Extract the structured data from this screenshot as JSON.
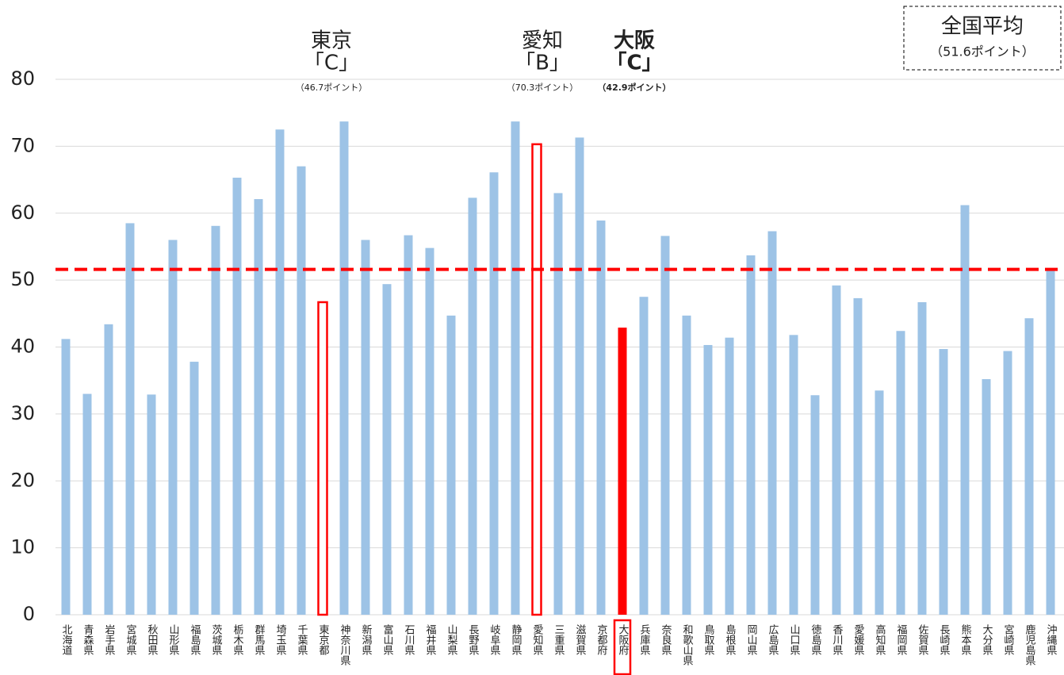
{
  "chart_data": {
    "type": "bar",
    "categories": [
      "北海道",
      "青森県",
      "岩手県",
      "宮城県",
      "秋田県",
      "山形県",
      "福島県",
      "茨城県",
      "栃木県",
      "群馬県",
      "埼玉県",
      "千葉県",
      "東京都",
      "神奈川県",
      "新潟県",
      "富山県",
      "石川県",
      "福井県",
      "山梨県",
      "長野県",
      "岐阜県",
      "静岡県",
      "愛知県",
      "三重県",
      "滋賀県",
      "京都府",
      "大阪府",
      "兵庫県",
      "奈良県",
      "和歌山県",
      "鳥取県",
      "島根県",
      "岡山県",
      "広島県",
      "山口県",
      "徳島県",
      "香川県",
      "愛媛県",
      "高知県",
      "福岡県",
      "佐賀県",
      "長崎県",
      "熊本県",
      "大分県",
      "宮崎県",
      "鹿児島県",
      "沖縄県"
    ],
    "values": [
      41.2,
      33,
      43.4,
      58.5,
      32.9,
      56,
      37.8,
      58.1,
      65.3,
      62.1,
      72.5,
      67,
      46.7,
      73.7,
      56,
      49.4,
      56.7,
      54.8,
      44.7,
      62.3,
      66.1,
      73.7,
      70.3,
      63,
      71.3,
      58.9,
      42.9,
      47.5,
      56.6,
      44.7,
      40.3,
      41.4,
      53.7,
      57.3,
      41.8,
      32.8,
      49.2,
      47.3,
      33.5,
      42.4,
      46.7,
      39.7,
      61.2,
      35.2,
      39.4,
      44.3,
      51.4
    ],
    "color": "#9dc3e6",
    "highlight_color": "#ff0000",
    "outlined": [
      12,
      22
    ],
    "filled": [
      26
    ],
    "ylim": [
      0,
      80
    ],
    "yticks": [
      0,
      10,
      20,
      30,
      40,
      50,
      60,
      70,
      80
    ],
    "grid": true,
    "average": {
      "value": 51.6,
      "label": "全国平均",
      "points": "（51.6ポイント）"
    },
    "annotations": [
      {
        "name": "東京",
        "grade": "「C」",
        "points": "（46.7ポイント）",
        "bold": false
      },
      {
        "name": "愛知",
        "grade": "「B」",
        "points": "（70.3ポイント）",
        "bold": false
      },
      {
        "name": "大阪",
        "grade": "「C」",
        "points": "（42.9ポイント）",
        "bold": true
      }
    ]
  }
}
